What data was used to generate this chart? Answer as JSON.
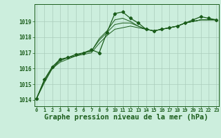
{
  "bg_color": "#cceedd",
  "grid_color": "#aaccbb",
  "line_color": "#1a5c1a",
  "xlabel": "Graphe pression niveau de la mer (hPa)",
  "xlabel_fontsize": 7.5,
  "ylabel_ticks": [
    1014,
    1015,
    1016,
    1017,
    1018,
    1019
  ],
  "xlim": [
    -0.3,
    23.3
  ],
  "ylim": [
    1013.6,
    1020.1
  ],
  "series": [
    [
      1014.1,
      1015.3,
      1016.1,
      1016.6,
      1016.7,
      1016.9,
      1017.0,
      1017.2,
      1017.0,
      1018.3,
      1019.5,
      1019.6,
      1019.2,
      1018.9,
      1018.5,
      1018.4,
      1018.5,
      1018.6,
      1018.7,
      1018.9,
      1019.1,
      1019.3,
      1019.2,
      1019.1
    ],
    [
      1014.1,
      1015.3,
      1016.1,
      1016.5,
      1016.7,
      1016.8,
      1017.0,
      1017.1,
      1017.9,
      1018.4,
      1019.1,
      1019.2,
      1019.0,
      1018.7,
      1018.5,
      1018.4,
      1018.5,
      1018.6,
      1018.7,
      1018.9,
      1019.0,
      1019.1,
      1019.1,
      1019.1
    ],
    [
      1014.1,
      1015.2,
      1016.0,
      1016.5,
      1016.7,
      1016.8,
      1017.0,
      1017.1,
      1017.8,
      1018.3,
      1018.8,
      1018.9,
      1018.9,
      1018.7,
      1018.5,
      1018.4,
      1018.5,
      1018.6,
      1018.7,
      1018.9,
      1019.0,
      1019.1,
      1019.1,
      1019.1
    ],
    [
      1014.1,
      1015.1,
      1016.0,
      1016.4,
      1016.6,
      1016.8,
      1016.9,
      1017.0,
      1017.6,
      1018.1,
      1018.5,
      1018.6,
      1018.7,
      1018.6,
      1018.5,
      1018.4,
      1018.5,
      1018.6,
      1018.7,
      1018.9,
      1019.0,
      1019.1,
      1019.1,
      1019.1
    ]
  ],
  "marker_series": 0,
  "marker": "D",
  "marker_size": 2.2,
  "linewidth_marker": 0.9,
  "linewidth_plain": 0.7
}
